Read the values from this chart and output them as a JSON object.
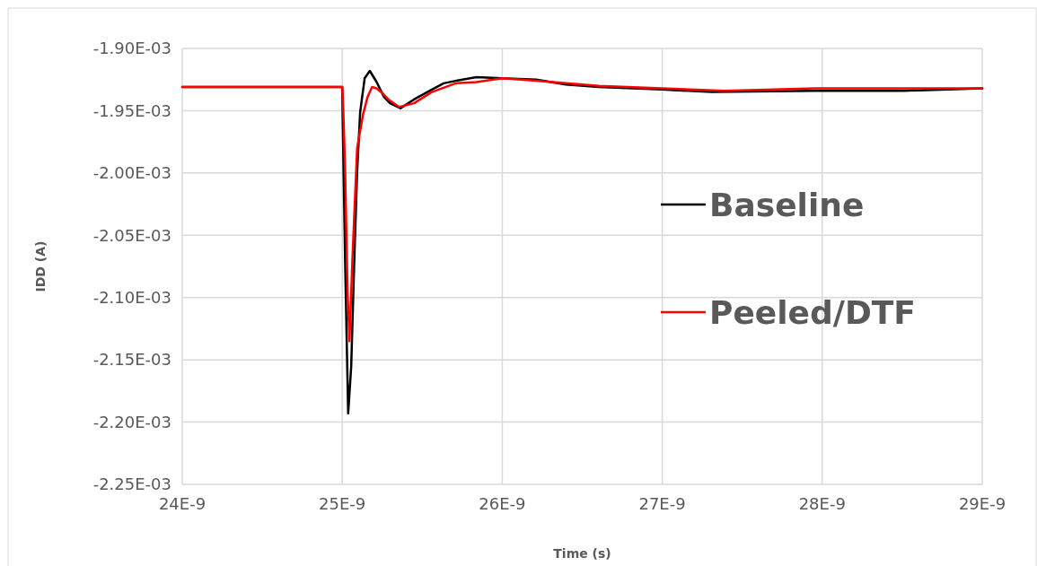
{
  "chart_data": {
    "type": "line",
    "xlabel": "Time (s)",
    "ylabel": "IDD (A)",
    "xlim": [
      2.4e-08,
      2.9e-08
    ],
    "xticks": [
      {
        "value": 2.4e-08,
        "label": "24E-9"
      },
      {
        "value": 2.5e-08,
        "label": "25E-9"
      },
      {
        "value": 2.6e-08,
        "label": "26E-9"
      },
      {
        "value": 2.7e-08,
        "label": "27E-9"
      },
      {
        "value": 2.8e-08,
        "label": "28E-9"
      },
      {
        "value": 2.9e-08,
        "label": "29E-9"
      }
    ],
    "ylim": [
      -0.00225,
      -0.0019
    ],
    "yticks": [
      {
        "value": -0.0019,
        "label": "-1.90E-03"
      },
      {
        "value": -0.00195,
        "label": "-1.95E-03"
      },
      {
        "value": -0.002,
        "label": "-2.00E-03"
      },
      {
        "value": -0.00205,
        "label": "-2.05E-03"
      },
      {
        "value": -0.0021,
        "label": "-2.10E-03"
      },
      {
        "value": -0.00215,
        "label": "-2.15E-03"
      },
      {
        "value": -0.0022,
        "label": "-2.20E-03"
      },
      {
        "value": -0.00225,
        "label": "-2.25E-03"
      }
    ],
    "grid": true,
    "legend": "right",
    "marker": "none",
    "line_style": "solid",
    "series": [
      {
        "name": "Baseline",
        "color": "#000000",
        "x": [
          2.4e-08,
          2.5e-08,
          2.5003e-08,
          2.5018e-08,
          2.5037e-08,
          2.5056e-08,
          2.5075e-08,
          2.5093e-08,
          2.5112e-08,
          2.514e-08,
          2.5172e-08,
          2.5215e-08,
          2.5261e-08,
          2.5299e-08,
          2.5364e-08,
          2.5448e-08,
          2.556e-08,
          2.5634e-08,
          2.5709e-08,
          2.5839e-08,
          2.6e-08,
          2.6212e-08,
          2.6399e-08,
          2.6604e-08,
          2.7e-08,
          2.731e-08,
          2.795e-08,
          2.851e-08,
          2.9e-08
        ],
        "values": [
          -0.001931,
          -0.001931,
          -0.001958,
          -0.002071,
          -0.002193,
          -0.002155,
          -0.002071,
          -0.001999,
          -0.001951,
          -0.001924,
          -0.001918,
          -0.001927,
          -0.001939,
          -0.001944,
          -0.001948,
          -0.001941,
          -0.001933,
          -0.001928,
          -0.001926,
          -0.001923,
          -0.001924,
          -0.001925,
          -0.001929,
          -0.001931,
          -0.001933,
          -0.001935,
          -0.001934,
          -0.001934,
          -0.001932
        ]
      },
      {
        "name": "Peeled/DTF",
        "color": "#ff0000",
        "x": [
          2.4e-08,
          2.5e-08,
          2.5006e-08,
          2.5018e-08,
          2.5033e-08,
          2.5045e-08,
          2.5063e-08,
          2.5093e-08,
          2.513e-08,
          2.5158e-08,
          2.5186e-08,
          2.5215e-08,
          2.5252e-08,
          2.5289e-08,
          2.5355e-08,
          2.5448e-08,
          2.556e-08,
          2.5709e-08,
          2.5839e-08,
          2.6e-08,
          2.6212e-08,
          2.6604e-08,
          2.7e-08,
          2.739e-08,
          2.795e-08,
          2.9e-08
        ],
        "values": [
          -0.001931,
          -0.001931,
          -0.001947,
          -0.001999,
          -0.002095,
          -0.002135,
          -0.002071,
          -0.00198,
          -0.001953,
          -0.001939,
          -0.001931,
          -0.001932,
          -0.001936,
          -0.001941,
          -0.001947,
          -0.001944,
          -0.001935,
          -0.001928,
          -0.001927,
          -0.001924,
          -0.001926,
          -0.00193,
          -0.001932,
          -0.001934,
          -0.001932,
          -0.001932
        ]
      }
    ]
  }
}
